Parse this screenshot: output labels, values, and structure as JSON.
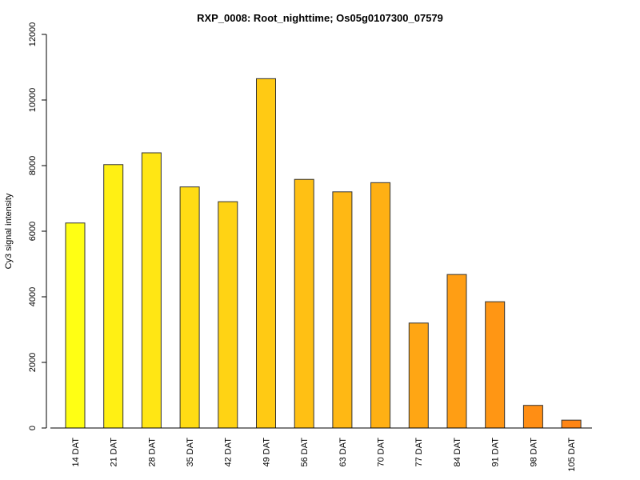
{
  "chart_data": {
    "type": "bar",
    "title": "RXP_0008: Root_nighttime; Os05g0107300_07579",
    "xlabel": "",
    "ylabel": "Cy3 signal intensity",
    "ylim": [
      0,
      12000
    ],
    "yticks": [
      0,
      2000,
      4000,
      6000,
      8000,
      10000,
      12000
    ],
    "grid": false,
    "categories": [
      "14 DAT",
      "21 DAT",
      "28 DAT",
      "35 DAT",
      "42 DAT",
      "49 DAT",
      "56 DAT",
      "63 DAT",
      "70 DAT",
      "77 DAT",
      "84 DAT",
      "91 DAT",
      "98 DAT",
      "105 DAT"
    ],
    "values": [
      6250,
      8030,
      8390,
      7350,
      6900,
      10650,
      7580,
      7200,
      7480,
      3200,
      4680,
      3850,
      690,
      240
    ],
    "colors": [
      "#FFFF14",
      "#FFF014",
      "#FFE614",
      "#FFDC14",
      "#FFD314",
      "#FFCA14",
      "#FFC014",
      "#FFB814",
      "#FFB014",
      "#FFA614",
      "#FF9E14",
      "#FF9614",
      "#FF8E14",
      "#FF8514"
    ]
  }
}
